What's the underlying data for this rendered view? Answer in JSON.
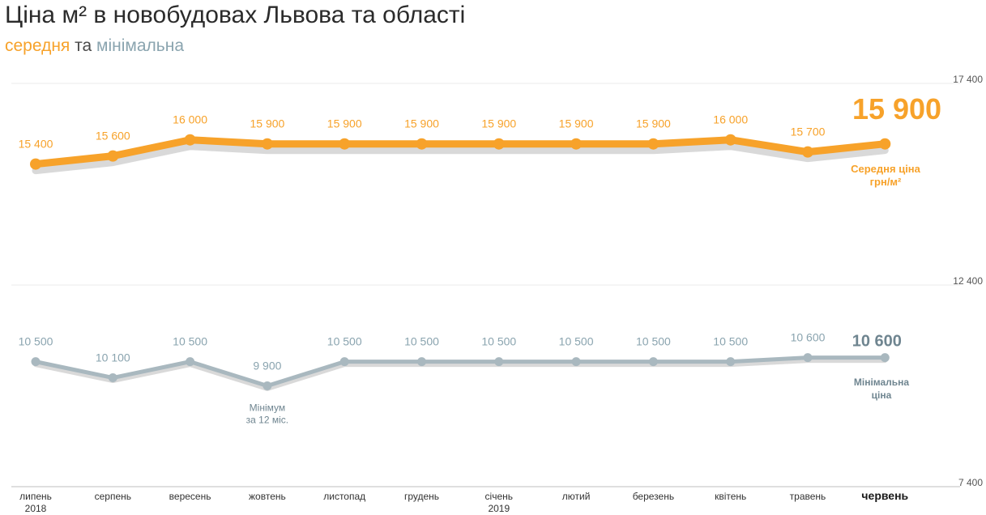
{
  "title": "Ціна м² в новобудовах Львова та області",
  "subtitle": {
    "part1": "середня",
    "part2": " та ",
    "part3": "мінімальна",
    "color_avg": "#f7a22a",
    "color_min": "#8aa4af",
    "color_mid": "#4a4a4a"
  },
  "chart_data": {
    "type": "line",
    "ylim": [
      7400,
      17400
    ],
    "yticks": [
      "17 400",
      "12 400",
      "7 400"
    ],
    "categories": [
      {
        "label": "липень",
        "sub": "2018"
      },
      {
        "label": "серпень",
        "sub": ""
      },
      {
        "label": "вересень",
        "sub": ""
      },
      {
        "label": "жовтень",
        "sub": ""
      },
      {
        "label": "листопад",
        "sub": ""
      },
      {
        "label": "грудень",
        "sub": ""
      },
      {
        "label": "січень",
        "sub": "2019"
      },
      {
        "label": "лютий",
        "sub": ""
      },
      {
        "label": "березень",
        "sub": ""
      },
      {
        "label": "квітень",
        "sub": ""
      },
      {
        "label": "травень",
        "sub": ""
      },
      {
        "label": "червень",
        "sub": ""
      }
    ],
    "series": [
      {
        "key": "avg",
        "color": "#f7a22a",
        "values": [
          15400,
          15600,
          16000,
          15900,
          15900,
          15900,
          15900,
          15900,
          15900,
          16000,
          15700,
          15900
        ],
        "labels": [
          "15 400",
          "15 600",
          "16 000",
          "15 900",
          "15 900",
          "15 900",
          "15 900",
          "15 900",
          "15 900",
          "16 000",
          "15 700",
          "15 900"
        ],
        "end_label": [
          "Середня ціна",
          "грн/м²"
        ]
      },
      {
        "key": "min",
        "color": "#a9b8bf",
        "label_color": "#8aa4af",
        "values": [
          10500,
          10100,
          10500,
          9900,
          10500,
          10500,
          10500,
          10500,
          10500,
          10500,
          10600,
          10600
        ],
        "labels": [
          "10 500",
          "10 100",
          "10 500",
          "9 900",
          "10 500",
          "10 500",
          "10 500",
          "10 500",
          "10 500",
          "10 500",
          "10 600",
          "10 600"
        ],
        "end_label": [
          "Мінімальна",
          "ціна"
        ]
      }
    ],
    "annotations": [
      {
        "index": 3,
        "series": "min",
        "lines": [
          "Мінімум",
          "за 12 міс."
        ]
      }
    ]
  }
}
